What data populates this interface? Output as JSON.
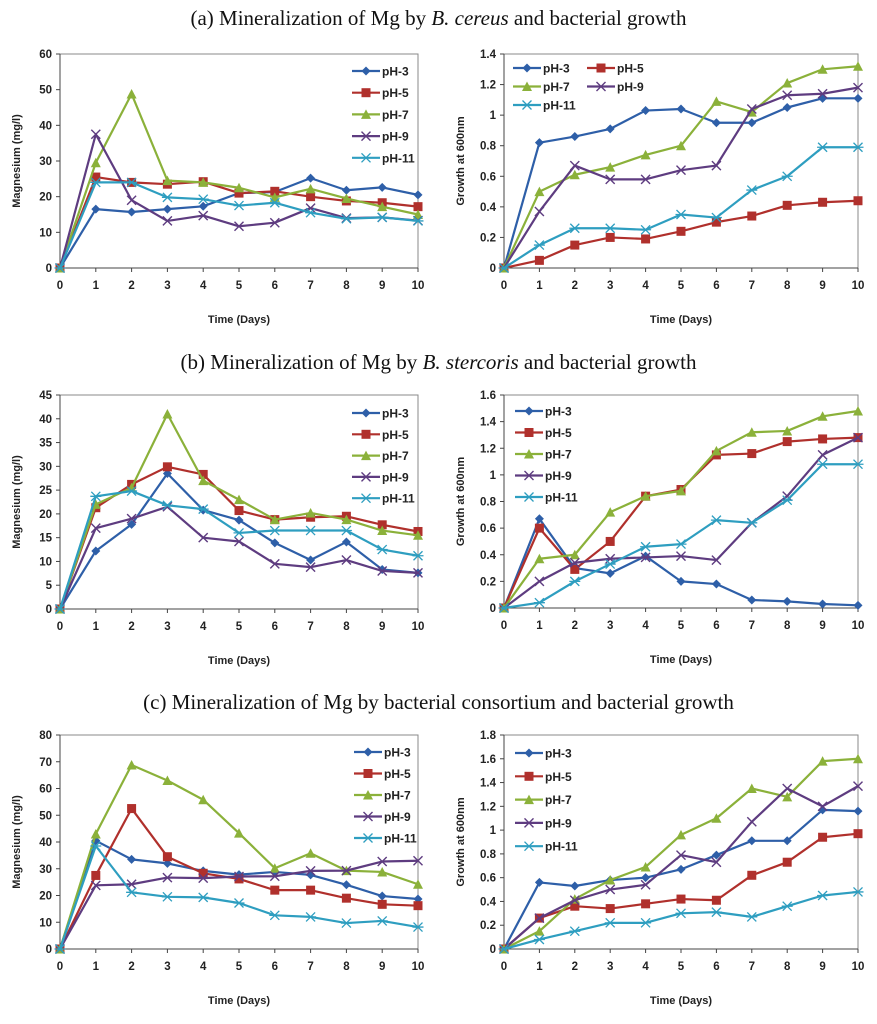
{
  "colors": {
    "pH-3": "#2E5FA8",
    "pH-5": "#B0302C",
    "pH-7": "#8BB13A",
    "pH-9": "#5E3C80",
    "pH-11": "#2E9EC0"
  },
  "markers": {
    "pH-3": "diamond",
    "pH-5": "square",
    "pH-7": "triangle",
    "pH-9": "x",
    "pH-11": "asterisk"
  },
  "titles": [
    {
      "prefix": "(a) Mineralization of Mg by ",
      "italic": "B. cereus",
      "suffix": " and bacterial growth"
    },
    {
      "prefix": "(b) Mineralization of Mg by ",
      "italic": "B. stercoris",
      "suffix": " and bacterial growth"
    },
    {
      "prefix": "(c) Mineralization of Mg by bacterial consortium and bacterial growth",
      "italic": "",
      "suffix": ""
    }
  ],
  "chart_data": [
    {
      "type": "line",
      "xlabel": "Time (Days)",
      "ylabel": "Magnesium (mg/l)",
      "x": [
        0,
        1,
        2,
        3,
        4,
        5,
        6,
        7,
        8,
        9,
        10
      ],
      "ylim": [
        0,
        60
      ],
      "ystep": 10,
      "grid": false,
      "legend": "top-right",
      "series": [
        {
          "name": "pH-3",
          "values": [
            0,
            16.5,
            15.7,
            16.5,
            17.3,
            21,
            21.3,
            25.2,
            21.8,
            22.6,
            20.5
          ]
        },
        {
          "name": "pH-5",
          "values": [
            0,
            25.5,
            24,
            23.5,
            24.2,
            21,
            21.5,
            20,
            18.8,
            18.3,
            17.2
          ]
        },
        {
          "name": "pH-7",
          "values": [
            0,
            29.5,
            48.8,
            24.5,
            24,
            22.5,
            19.8,
            22.2,
            19.5,
            17.2,
            15
          ]
        },
        {
          "name": "pH-9",
          "values": [
            0,
            37.5,
            19,
            13.2,
            14.7,
            11.7,
            12.7,
            16.8,
            14,
            14.2,
            13.3
          ]
        },
        {
          "name": "pH-11",
          "values": [
            0,
            24,
            24,
            19.8,
            19.3,
            17.5,
            18.3,
            15.5,
            13.8,
            14.2,
            13.2
          ]
        }
      ]
    },
    {
      "type": "line",
      "xlabel": "Time (Days)",
      "ylabel": "Growth at 600nm",
      "x": [
        0,
        1,
        2,
        3,
        4,
        5,
        6,
        7,
        8,
        9,
        10
      ],
      "ylim": [
        0,
        1.4
      ],
      "ystep": 0.2,
      "grid": false,
      "legend": "top-left",
      "series": [
        {
          "name": "pH-3",
          "values": [
            0,
            0.82,
            0.86,
            0.91,
            1.03,
            1.04,
            0.95,
            0.95,
            1.05,
            1.11,
            1.11
          ]
        },
        {
          "name": "pH-5",
          "values": [
            0,
            0.05,
            0.15,
            0.2,
            0.19,
            0.24,
            0.3,
            0.34,
            0.41,
            0.43,
            0.44
          ]
        },
        {
          "name": "pH-7",
          "values": [
            0,
            0.5,
            0.61,
            0.66,
            0.74,
            0.8,
            1.09,
            1.02,
            1.21,
            1.3,
            1.32
          ]
        },
        {
          "name": "pH-9",
          "values": [
            0,
            0.37,
            0.67,
            0.58,
            0.58,
            0.64,
            0.67,
            1.04,
            1.13,
            1.14,
            1.18
          ]
        },
        {
          "name": "pH-11",
          "values": [
            0,
            0.15,
            0.26,
            0.26,
            0.25,
            0.35,
            0.33,
            0.51,
            0.6,
            0.79,
            0.79
          ]
        }
      ]
    },
    {
      "type": "line",
      "xlabel": "Time (Days)",
      "ylabel": "Magnesium (mg/l)",
      "x": [
        0,
        1,
        2,
        3,
        4,
        5,
        6,
        7,
        8,
        9,
        10
      ],
      "ylim": [
        0,
        45
      ],
      "ystep": 5,
      "grid": false,
      "legend": "top-right",
      "series": [
        {
          "name": "pH-3",
          "values": [
            0,
            12.2,
            17.8,
            28.5,
            20.8,
            18.7,
            13.9,
            10.3,
            14.1,
            8.3,
            7.6
          ]
        },
        {
          "name": "pH-5",
          "values": [
            0,
            21.3,
            26.2,
            29.9,
            28.3,
            20.7,
            18.8,
            19.3,
            19.5,
            17.7,
            16.3
          ]
        },
        {
          "name": "pH-7",
          "values": [
            0,
            22,
            25.5,
            41,
            27,
            23,
            18.8,
            20.2,
            18.8,
            16.5,
            15.5
          ]
        },
        {
          "name": "pH-9",
          "values": [
            0,
            17,
            19,
            21.5,
            15,
            14.2,
            9.5,
            8.8,
            10.3,
            8,
            7.6
          ]
        },
        {
          "name": "pH-11",
          "values": [
            0,
            23.7,
            24.8,
            21.8,
            21,
            16,
            16.5,
            16.5,
            16.5,
            12.5,
            11.2
          ]
        }
      ]
    },
    {
      "type": "line",
      "xlabel": "Time (Days)",
      "ylabel": "Growth at 600nm",
      "x": [
        0,
        1,
        2,
        3,
        4,
        5,
        6,
        7,
        8,
        9,
        10
      ],
      "ylim": [
        0,
        1.6
      ],
      "ystep": 0.2,
      "grid": false,
      "legend": "top-left",
      "series": [
        {
          "name": "pH-3",
          "values": [
            0,
            0.67,
            0.3,
            0.26,
            0.39,
            0.2,
            0.18,
            0.06,
            0.05,
            0.03,
            0.02
          ]
        },
        {
          "name": "pH-5",
          "values": [
            0,
            0.6,
            0.29,
            0.5,
            0.84,
            0.89,
            1.15,
            1.16,
            1.25,
            1.27,
            1.28
          ]
        },
        {
          "name": "pH-7",
          "values": [
            0,
            0.37,
            0.4,
            0.72,
            0.84,
            0.88,
            1.18,
            1.32,
            1.33,
            1.44,
            1.48
          ]
        },
        {
          "name": "pH-9",
          "values": [
            0,
            0.2,
            0.34,
            0.37,
            0.38,
            0.39,
            0.36,
            0.64,
            0.84,
            1.15,
            1.28
          ]
        },
        {
          "name": "pH-11",
          "values": [
            0,
            0.04,
            0.2,
            0.33,
            0.46,
            0.48,
            0.66,
            0.64,
            0.81,
            1.08,
            1.08
          ]
        }
      ]
    },
    {
      "type": "line",
      "xlabel": "Time (Days)",
      "ylabel": "Magnesium (mg/l)",
      "x": [
        0,
        1,
        2,
        3,
        4,
        5,
        6,
        7,
        8,
        9,
        10
      ],
      "ylim": [
        0,
        80
      ],
      "ystep": 10,
      "grid": false,
      "legend": "top-right",
      "series": [
        {
          "name": "pH-3",
          "values": [
            0,
            40.5,
            33.5,
            32,
            29.2,
            27.8,
            28.8,
            27.7,
            24,
            19.8,
            18.7
          ]
        },
        {
          "name": "pH-5",
          "values": [
            0,
            27.5,
            52.5,
            34.5,
            28.3,
            26.2,
            22,
            22,
            19,
            16.7,
            16.2
          ]
        },
        {
          "name": "pH-7",
          "values": [
            0,
            43,
            68.8,
            63,
            55.8,
            43.3,
            30.2,
            35.8,
            29.3,
            28.8,
            24.2
          ]
        },
        {
          "name": "pH-9",
          "values": [
            0,
            23.8,
            24.2,
            26.7,
            26.5,
            27.1,
            27.2,
            29.2,
            29.3,
            32.7,
            33
          ]
        },
        {
          "name": "pH-11",
          "values": [
            0,
            38.5,
            21.2,
            19.5,
            19.3,
            17.2,
            12.6,
            12,
            9.7,
            10.5,
            8.2
          ]
        }
      ]
    },
    {
      "type": "line",
      "xlabel": "Time (Days)",
      "ylabel": "Growth at 600nm",
      "x": [
        0,
        1,
        2,
        3,
        4,
        5,
        6,
        7,
        8,
        9,
        10
      ],
      "ylim": [
        0,
        1.8
      ],
      "ystep": 0.2,
      "grid": false,
      "legend": "top-left",
      "series": [
        {
          "name": "pH-3",
          "values": [
            0,
            0.56,
            0.53,
            0.58,
            0.6,
            0.67,
            0.79,
            0.91,
            0.91,
            1.17,
            1.16
          ]
        },
        {
          "name": "pH-5",
          "values": [
            0,
            0.26,
            0.36,
            0.34,
            0.38,
            0.42,
            0.41,
            0.62,
            0.73,
            0.94,
            0.97
          ]
        },
        {
          "name": "pH-7",
          "values": [
            0,
            0.15,
            0.42,
            0.58,
            0.69,
            0.96,
            1.1,
            1.35,
            1.28,
            1.58,
            1.6
          ]
        },
        {
          "name": "pH-9",
          "values": [
            0,
            0.26,
            0.41,
            0.5,
            0.54,
            0.79,
            0.73,
            1.07,
            1.35,
            1.2,
            1.37
          ]
        },
        {
          "name": "pH-11",
          "values": [
            0,
            0.08,
            0.15,
            0.22,
            0.22,
            0.3,
            0.31,
            0.27,
            0.36,
            0.45,
            0.48
          ]
        }
      ]
    }
  ]
}
